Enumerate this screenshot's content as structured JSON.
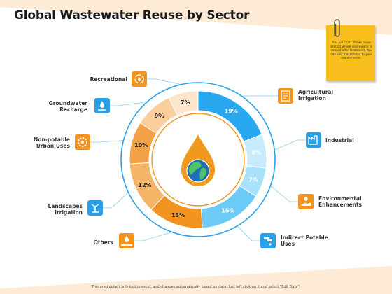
{
  "title": "Global Wastewater Reuse by Sector",
  "note_text": "This pie chart shows major sectors where wastewater is reused after treatment. You can edit it according to your requirements.",
  "footer": "This graph/chart is linked to excel, and changes automatically based on data. Just left click on it and select \"Edit Data\".",
  "colors": {
    "orange": "#f2921f",
    "orange_mid": "#f5b468",
    "orange_light": "#fbd0a4",
    "orange_pale": "#fde4cc",
    "blue": "#29a8f0",
    "blue_mid": "#86d4f8",
    "blue_light": "#c6ebfc",
    "blue_icon": "#2b9fe6",
    "ring_blue": "#2aa3e8",
    "drop": "#ef9a1e",
    "bg_peach": "#fdebd6"
  },
  "chart_data": {
    "type": "pie",
    "style": "donut",
    "title": "Global Wastewater Reuse by Sector",
    "slices": [
      {
        "label": "Agricultural Irrigation",
        "value": 19,
        "display": "19%",
        "color": "#29a8f0",
        "icon": "factory-icon"
      },
      {
        "label": "Industrial",
        "value": 8,
        "display": "8%",
        "color": "#c6ebfc",
        "icon": "industry-icon"
      },
      {
        "label": "Environmental Enhancements",
        "value": 7,
        "display": "7%",
        "color": "#a9e1fa",
        "icon": "hand-plant-icon"
      },
      {
        "label": "Indirect Potable Uses",
        "value": 15,
        "display": "15%",
        "color": "#6ccaf6",
        "icon": "tap-icon"
      },
      {
        "label": "Others",
        "value": 13,
        "display": "13%",
        "color": "#f2921f",
        "icon": "water-hand-icon"
      },
      {
        "label": "Landscapes Irrigation",
        "value": 12,
        "display": "12%",
        "color": "#f5b468",
        "icon": "sprinkler-icon"
      },
      {
        "label": "Non-potable Urban Uses",
        "value": 10,
        "display": "10%",
        "color": "#f3a247",
        "icon": "gear-drop-icon"
      },
      {
        "label": "Groundwater Recharge",
        "value": 9,
        "display": "9%",
        "color": "#fbcf9d",
        "icon": "groundwater-icon"
      },
      {
        "label": "Recreational",
        "value": 7,
        "display": "7%",
        "color": "#fde4cc",
        "icon": "recycle-icon"
      }
    ]
  }
}
